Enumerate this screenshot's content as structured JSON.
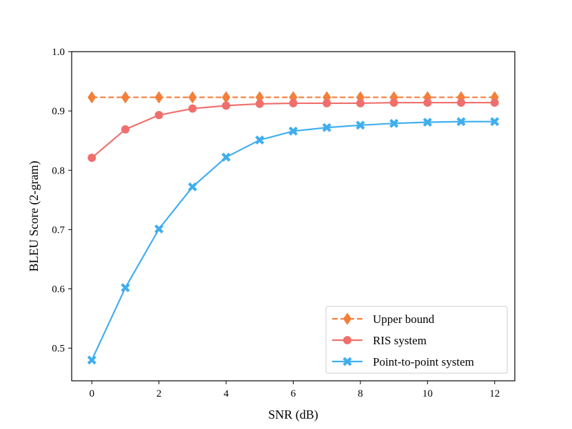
{
  "chart_data": {
    "type": "line",
    "title": "",
    "xlabel": "SNR (dB)",
    "ylabel": "BLEU Score (2-gram)",
    "xlim": [
      -0.6,
      12.6
    ],
    "ylim": [
      0.445,
      1.0
    ],
    "xticks": [
      0,
      2,
      4,
      6,
      8,
      10,
      12
    ],
    "yticks": [
      0.5,
      0.6,
      0.7,
      0.8,
      0.9,
      1.0
    ],
    "ytick_labels": [
      "0.5",
      "0.6",
      "0.7",
      "0.8",
      "0.9",
      "1.0"
    ],
    "grid": false,
    "legend_position": "lower-right",
    "x": [
      0,
      1,
      2,
      3,
      4,
      5,
      6,
      7,
      8,
      9,
      10,
      11,
      12
    ],
    "series": [
      {
        "name": "Upper bound",
        "color": "#F47F3A",
        "linestyle": "dashed",
        "marker": "diamond",
        "values": [
          0.923,
          0.923,
          0.923,
          0.923,
          0.923,
          0.923,
          0.923,
          0.923,
          0.923,
          0.923,
          0.923,
          0.923,
          0.923
        ]
      },
      {
        "name": "RIS system",
        "color": "#EF6F6C",
        "linestyle": "solid",
        "marker": "circle",
        "values": [
          0.821,
          0.869,
          0.893,
          0.904,
          0.909,
          0.912,
          0.913,
          0.913,
          0.913,
          0.914,
          0.914,
          0.914,
          0.914
        ]
      },
      {
        "name": "Point-to-point system",
        "color": "#3FAEEF",
        "linestyle": "solid",
        "marker": "x",
        "values": [
          0.48,
          0.602,
          0.701,
          0.772,
          0.822,
          0.851,
          0.866,
          0.872,
          0.876,
          0.879,
          0.881,
          0.882,
          0.882
        ]
      }
    ]
  }
}
